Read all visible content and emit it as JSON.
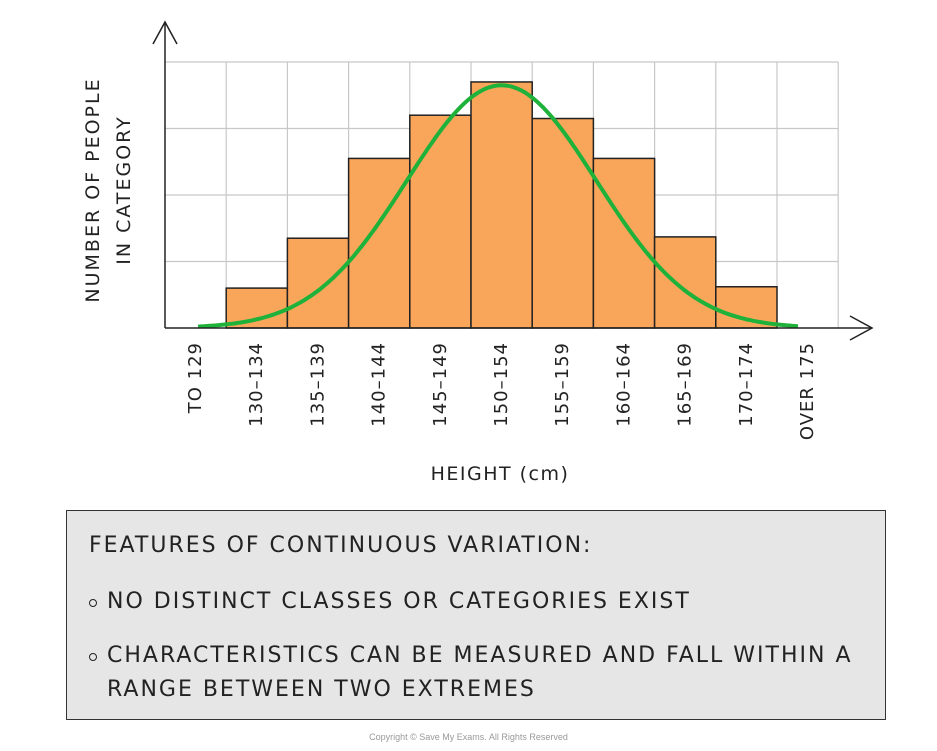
{
  "chart_data": {
    "type": "bar",
    "xlabel": "HEIGHT (cm)",
    "ylabel_lines": [
      "NUMBER OF PEOPLE",
      "IN CATEGORY"
    ],
    "categories": [
      "TO 129",
      "130–134",
      "135–139",
      "140–144",
      "145–149",
      "150–154",
      "155–159",
      "160–164",
      "165–169",
      "170–174",
      "OVER 175"
    ],
    "values": [
      0,
      0.6,
      1.35,
      2.55,
      3.2,
      3.7,
      3.15,
      2.55,
      1.37,
      0.62,
      0
    ],
    "ylim": [
      0,
      4
    ],
    "grid": true,
    "bar_color": "#f9a65a",
    "curve_color": "#1fb23b",
    "curve": {
      "type": "normal",
      "peak": 3.65,
      "center_category": "150–154"
    }
  },
  "info": {
    "title": "FEATURES OF CONTINUOUS VARIATION:",
    "points": [
      "NO DISTINCT CLASSES OR CATEGORIES EXIST",
      "CHARACTERISTICS CAN BE MEASURED AND FALL WITHIN A RANGE BETWEEN TWO EXTREMES"
    ]
  },
  "copyright": "Copyright © Save My Exams. All Rights Reserved"
}
